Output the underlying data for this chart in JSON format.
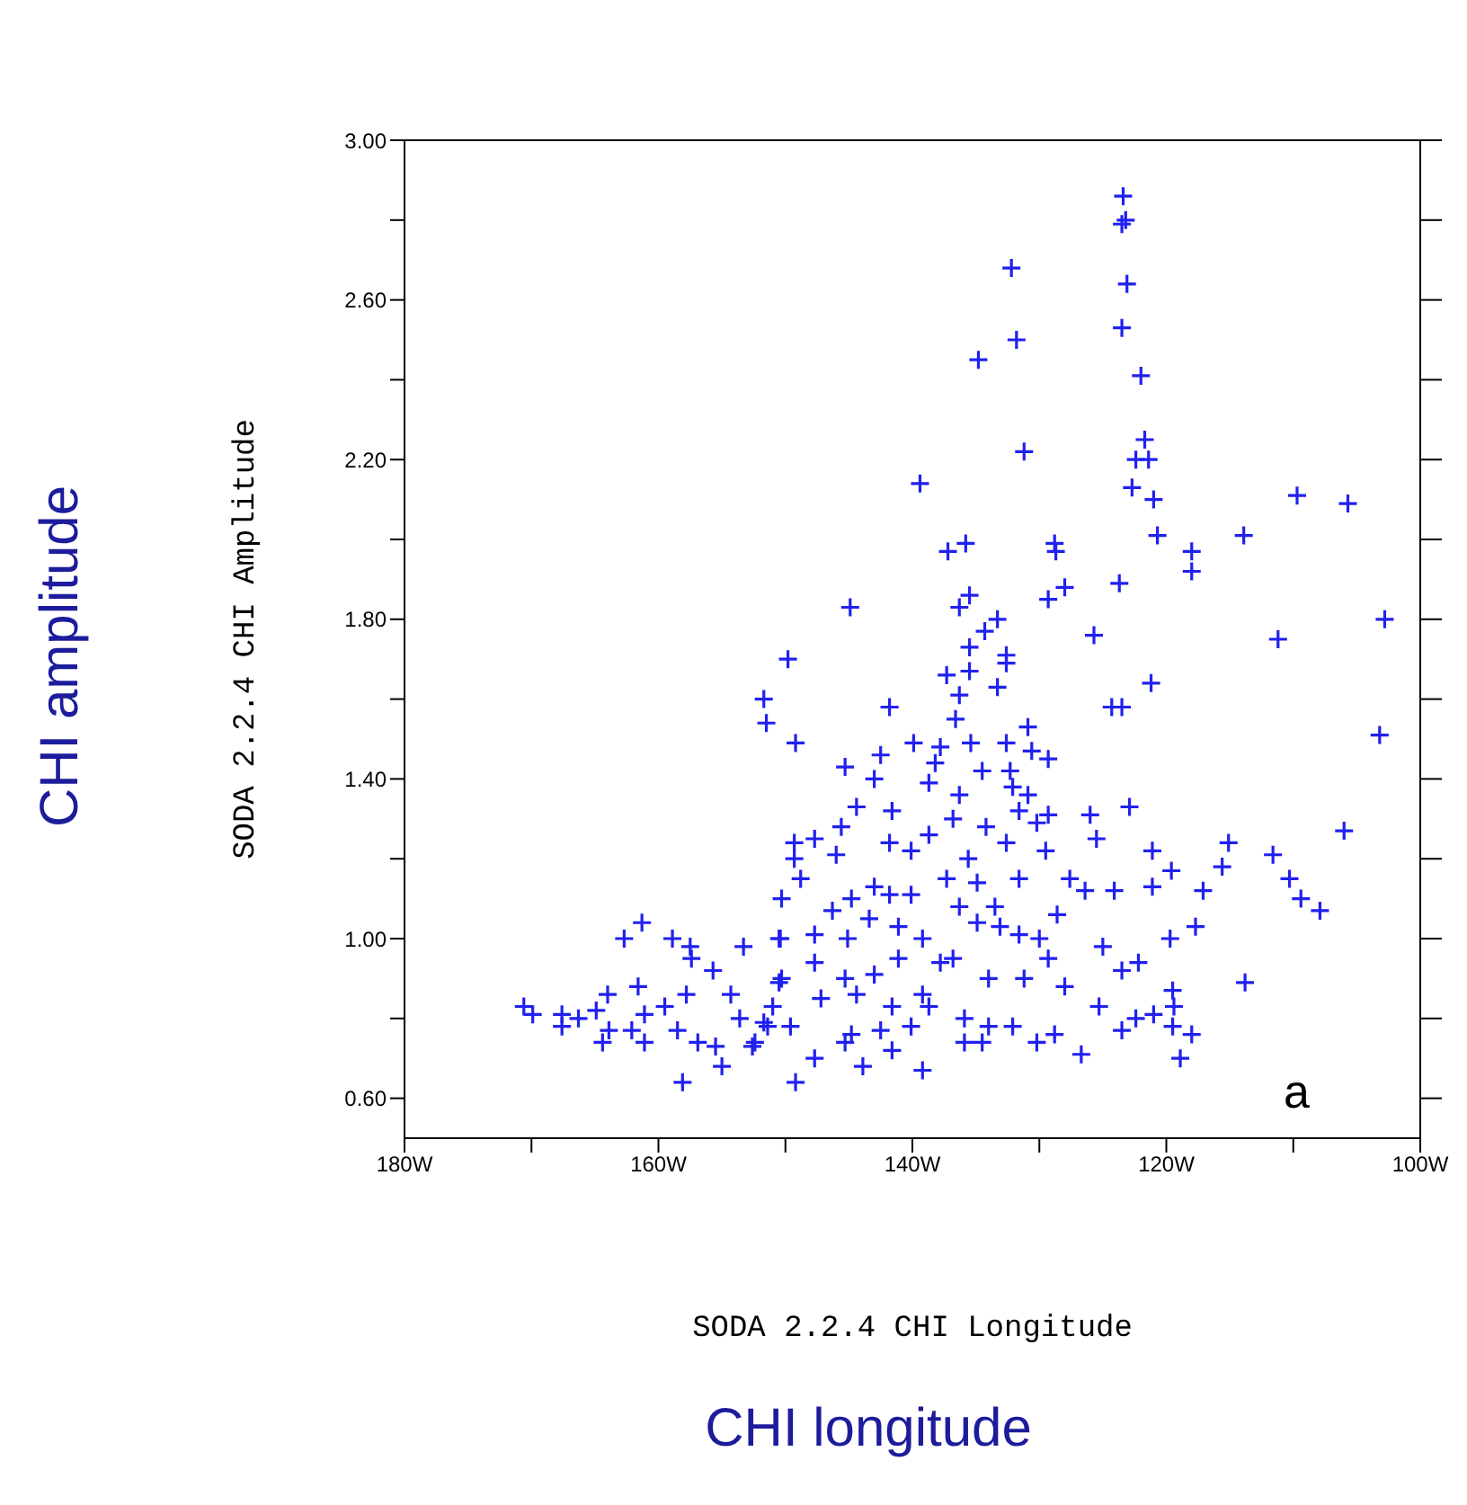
{
  "chart_data": {
    "type": "scatter",
    "xlabel": "SODA 2.2.4 CHI Longitude",
    "ylabel": "SODA 2.2.4 CHI Amplitude",
    "annotations": [
      "a",
      "CHI amplitude",
      "CHI longitude"
    ],
    "marker": "cross",
    "grid": false,
    "legend": false,
    "xlim": [
      -180,
      -100
    ],
    "xticks": [
      {
        "value": -180,
        "label": "180W"
      },
      {
        "value": -170,
        "label": null
      },
      {
        "value": -160,
        "label": "160W"
      },
      {
        "value": -150,
        "label": null
      },
      {
        "value": -140,
        "label": "140W"
      },
      {
        "value": -130,
        "label": null
      },
      {
        "value": -120,
        "label": "120W"
      },
      {
        "value": -110,
        "label": null
      },
      {
        "value": -100,
        "label": "100W"
      }
    ],
    "ylim": [
      0.5,
      3.0
    ],
    "yticks": [
      {
        "value": 0.6,
        "label": "0.60"
      },
      {
        "value": 0.8,
        "label": null
      },
      {
        "value": 1.0,
        "label": "1.00"
      },
      {
        "value": 1.2,
        "label": null
      },
      {
        "value": 1.4,
        "label": "1.40"
      },
      {
        "value": 1.6,
        "label": null
      },
      {
        "value": 1.8,
        "label": "1.80"
      },
      {
        "value": 2.0,
        "label": null
      },
      {
        "value": 2.2,
        "label": "2.20"
      },
      {
        "value": 2.4,
        "label": null
      },
      {
        "value": 2.6,
        "label": "2.60"
      },
      {
        "value": 2.8,
        "label": null
      },
      {
        "value": 3.0,
        "label": "3.00"
      }
    ],
    "series": [
      {
        "color": "#2020f0",
        "x": [
          -123.4,
          -123.5,
          -123.2,
          -132.2,
          -123.1,
          -123.5,
          -131.8,
          -122.0,
          -134.8,
          -121.7,
          -122.4,
          -121.4,
          -131.2,
          -139.4,
          -122.7,
          -121.0,
          -109.7,
          -105.7,
          -137.2,
          -135.8,
          -128.8,
          -128.7,
          -120.7,
          -118.0,
          -118.0,
          -113.9,
          -144.9,
          -136.3,
          -135.5,
          -129.3,
          -128.0,
          -123.7,
          -133.3,
          -134.3,
          -102.8,
          -125.7,
          -111.2,
          -149.8,
          -135.5,
          -132.6,
          -132.6,
          -137.3,
          -135.5,
          -133.3,
          -121.2,
          -103.2,
          -123.5,
          -122.9,
          -106.0,
          -121.1,
          -115.1,
          -115.6,
          -111.6,
          -110.3,
          -109.4,
          -107.9,
          -119.6,
          -121.1,
          -117.1,
          -117.7,
          -119.7,
          -113.8,
          -123.5,
          -122.2,
          -119.5,
          -119.4,
          -121.0,
          -122.4,
          -123.5,
          -119.5,
          -118.0,
          -118.9,
          -151.7,
          -151.5,
          -141.8,
          -136.3,
          -124.3,
          -136.6,
          -130.9,
          -149.2,
          -142.5,
          -139.9,
          -137.8,
          -135.4,
          -132.6,
          -130.6,
          -129.3,
          -145.3,
          -143.0,
          -138.2,
          -134.5,
          -132.3,
          -138.7,
          -132.1,
          -136.3,
          -130.9,
          -141.6,
          -144.4,
          -136.8,
          -131.6,
          -129.3,
          -126.0,
          -145.6,
          -138.7,
          -134.2,
          -130.2,
          -149.3,
          -147.7,
          -141.8,
          -140.1,
          -132.6,
          -125.5,
          -149.3,
          -146.0,
          -135.6,
          -129.5,
          -148.8,
          -143.0,
          -140.1,
          -137.3,
          -134.9,
          -131.6,
          -127.6,
          -126.4,
          -124.1,
          -150.3,
          -144.8,
          -141.8,
          -136.3,
          -133.5,
          -146.3,
          -143.4,
          -141.1,
          -134.9,
          -133.1,
          -128.6,
          -150.5,
          -147.7,
          -145.1,
          -139.2,
          -136.8,
          -131.6,
          -130.0,
          -129.3,
          -125.0,
          -150.3,
          -147.7,
          -145.3,
          -143.0,
          -141.1,
          -139.2,
          -137.8,
          -134.0,
          -131.2,
          -128.0,
          -125.3,
          -151.0,
          -147.2,
          -144.4,
          -141.6,
          -138.7,
          -135.9,
          -149.6,
          -144.8,
          -142.5,
          -140.1,
          -134.0,
          -132.1,
          -130.2,
          -128.8,
          -147.7,
          -145.3,
          -143.9,
          -141.6,
          -139.2,
          -135.9,
          -134.5,
          -126.7,
          -149.2,
          -152.4,
          -151.4,
          -161.3,
          -162.7,
          -158.9,
          -157.5,
          -157.4,
          -155.7,
          -153.3,
          -150.4,
          -161.6,
          -164.0,
          -170.6,
          -169.9,
          -167.6,
          -167.6,
          -166.3,
          -164.9,
          -163.9,
          -164.4,
          -162.1,
          -161.1,
          -161.1,
          -159.5,
          -158.5,
          -157.8,
          -156.9,
          -155.5,
          -155.0,
          -154.3,
          -153.6,
          -152.6,
          -158.1,
          -151.7,
          -150.5
        ],
        "values": [
          2.86,
          2.79,
          2.8,
          2.68,
          2.64,
          2.53,
          2.5,
          2.41,
          2.45,
          2.25,
          2.2,
          2.2,
          2.22,
          2.14,
          2.13,
          2.1,
          2.11,
          2.09,
          1.97,
          1.99,
          1.99,
          1.97,
          2.01,
          1.97,
          1.92,
          2.01,
          1.83,
          1.83,
          1.86,
          1.85,
          1.88,
          1.89,
          1.8,
          1.77,
          1.8,
          1.76,
          1.75,
          1.7,
          1.73,
          1.71,
          1.69,
          1.66,
          1.67,
          1.63,
          1.64,
          1.51,
          1.58,
          1.33,
          1.27,
          1.22,
          1.24,
          1.18,
          1.21,
          1.15,
          1.1,
          1.07,
          1.17,
          1.13,
          1.12,
          1.03,
          1.0,
          0.89,
          0.92,
          0.94,
          0.87,
          0.83,
          0.81,
          0.8,
          0.77,
          0.78,
          0.76,
          0.7,
          1.6,
          1.54,
          1.58,
          1.61,
          1.58,
          1.55,
          1.53,
          1.49,
          1.46,
          1.49,
          1.48,
          1.49,
          1.49,
          1.47,
          1.45,
          1.43,
          1.4,
          1.44,
          1.42,
          1.42,
          1.39,
          1.38,
          1.36,
          1.36,
          1.32,
          1.33,
          1.3,
          1.32,
          1.31,
          1.31,
          1.28,
          1.26,
          1.28,
          1.29,
          1.24,
          1.25,
          1.24,
          1.22,
          1.24,
          1.25,
          1.2,
          1.21,
          1.2,
          1.22,
          1.15,
          1.13,
          1.11,
          1.15,
          1.14,
          1.15,
          1.15,
          1.12,
          1.12,
          1.1,
          1.1,
          1.11,
          1.08,
          1.08,
          1.07,
          1.05,
          1.03,
          1.04,
          1.03,
          1.06,
          1.0,
          1.01,
          1.0,
          1.0,
          0.95,
          1.01,
          1.0,
          0.95,
          0.98,
          0.9,
          0.94,
          0.9,
          0.91,
          0.95,
          0.86,
          0.94,
          0.9,
          0.9,
          0.88,
          0.83,
          0.83,
          0.85,
          0.86,
          0.83,
          0.83,
          0.8,
          0.78,
          0.76,
          0.77,
          0.78,
          0.78,
          0.78,
          0.74,
          0.76,
          0.7,
          0.74,
          0.68,
          0.72,
          0.67,
          0.74,
          0.74,
          0.71,
          0.64,
          0.74,
          0.78,
          1.04,
          1.0,
          1.0,
          0.98,
          0.95,
          0.92,
          0.98,
          1.0,
          0.88,
          0.86,
          0.83,
          0.81,
          0.81,
          0.78,
          0.8,
          0.82,
          0.77,
          0.74,
          0.77,
          0.81,
          0.74,
          0.83,
          0.77,
          0.86,
          0.74,
          0.73,
          0.68,
          0.86,
          0.8,
          0.73,
          0.64,
          0.79,
          0.89
        ]
      }
    ]
  }
}
